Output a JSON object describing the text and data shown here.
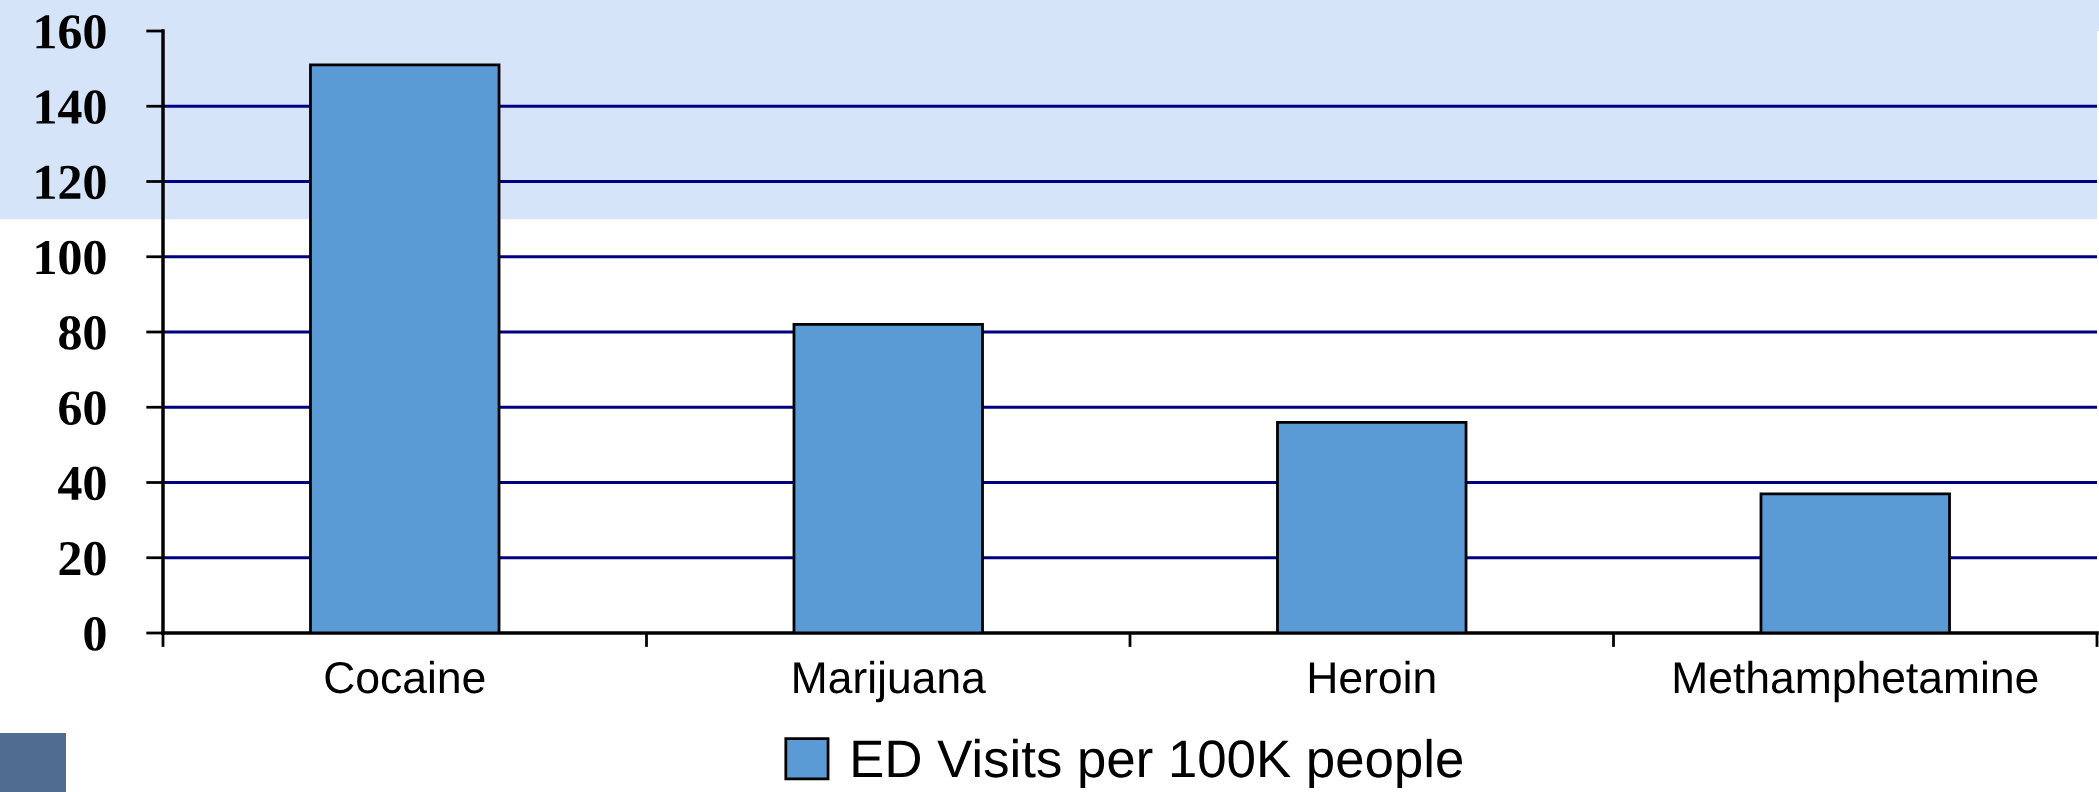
{
  "chart_data": {
    "type": "bar",
    "categories": [
      "Cocaine",
      "Marijuana",
      "Heroin",
      "Methamphetamine"
    ],
    "series": [
      {
        "name": "ED Visits per 100K people",
        "color": "#5b9bd5",
        "values": [
          151,
          82,
          56,
          37
        ]
      }
    ],
    "ylim": [
      0,
      160
    ],
    "yticks": [
      0,
      20,
      40,
      60,
      80,
      100,
      120,
      140,
      160
    ],
    "bands": [
      {
        "axis": "y",
        "from": 110,
        "to": 160,
        "color": "#d5e4f8"
      }
    ],
    "grid": "y",
    "legend": "bottom"
  }
}
